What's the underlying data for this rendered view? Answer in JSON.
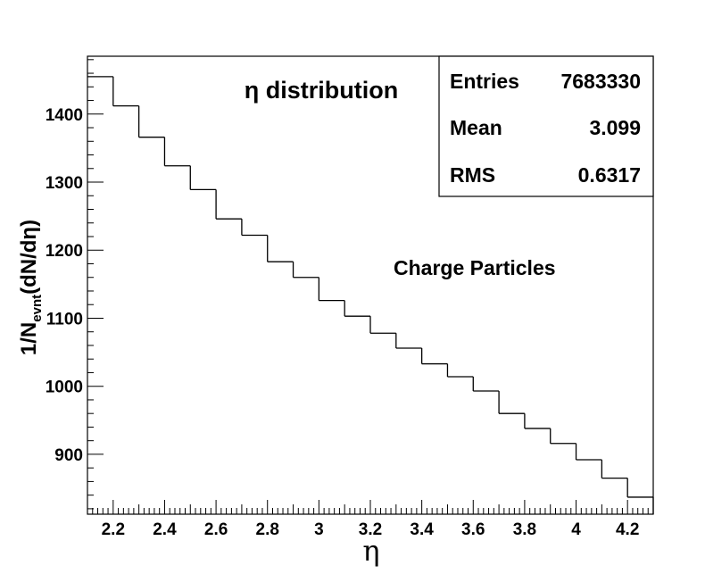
{
  "chart_data": {
    "type": "bar",
    "title": "η distribution",
    "xlabel": "η",
    "ylabel": {
      "prefix": "1/N",
      "sub": "evnt",
      "suffix": "(dN/dη)"
    },
    "xlim": [
      2.1,
      4.3
    ],
    "ylim": [
      812,
      1485
    ],
    "bin_width": 0.1,
    "x_ticks": [
      2.2,
      2.4,
      2.6,
      2.8,
      3,
      3.2,
      3.4,
      3.6,
      3.8,
      4,
      4.2
    ],
    "y_ticks": [
      900,
      1000,
      1100,
      1200,
      1300,
      1400
    ],
    "bins": [
      {
        "x": 2.15,
        "y": 1455
      },
      {
        "x": 2.25,
        "y": 1412
      },
      {
        "x": 2.35,
        "y": 1366
      },
      {
        "x": 2.45,
        "y": 1324
      },
      {
        "x": 2.55,
        "y": 1289
      },
      {
        "x": 2.65,
        "y": 1246
      },
      {
        "x": 2.75,
        "y": 1222
      },
      {
        "x": 2.85,
        "y": 1183
      },
      {
        "x": 2.95,
        "y": 1160
      },
      {
        "x": 3.05,
        "y": 1126
      },
      {
        "x": 3.15,
        "y": 1103
      },
      {
        "x": 3.25,
        "y": 1078
      },
      {
        "x": 3.35,
        "y": 1056
      },
      {
        "x": 3.45,
        "y": 1033
      },
      {
        "x": 3.55,
        "y": 1014
      },
      {
        "x": 3.65,
        "y": 993
      },
      {
        "x": 3.75,
        "y": 960
      },
      {
        "x": 3.85,
        "y": 938
      },
      {
        "x": 3.95,
        "y": 916
      },
      {
        "x": 4.05,
        "y": 892
      },
      {
        "x": 4.15,
        "y": 865
      },
      {
        "x": 4.25,
        "y": 837
      }
    ],
    "stats": [
      {
        "label": "Entries",
        "value": "7683330"
      },
      {
        "label": "Mean",
        "value": "3.099"
      },
      {
        "label": "RMS",
        "value": "0.6317"
      }
    ],
    "annotation": "Charge Particles",
    "grid": false
  }
}
